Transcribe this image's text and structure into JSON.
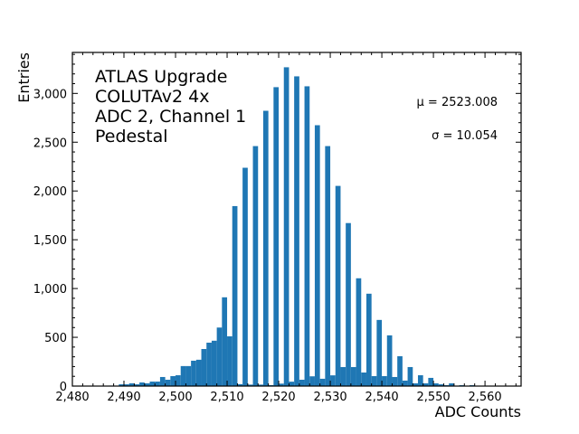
{
  "chart_data": {
    "type": "bar",
    "title": "",
    "xlabel": "ADC Counts",
    "ylabel": "Entries",
    "xlim": [
      2480,
      2567
    ],
    "ylim": [
      0,
      3420
    ],
    "bin_width": 1,
    "x_ticks": [
      2480,
      2490,
      2500,
      2510,
      2520,
      2530,
      2540,
      2550,
      2560
    ],
    "x_tick_labels": [
      "2,480",
      "2,490",
      "2,500",
      "2,510",
      "2,520",
      "2,530",
      "2,540",
      "2,550",
      "2,560"
    ],
    "y_ticks": [
      0,
      500,
      1000,
      1500,
      2000,
      2500,
      3000
    ],
    "y_tick_labels": [
      "0",
      "500",
      "1,000",
      "1,500",
      "2,000",
      "2,500",
      "3,000"
    ],
    "grid": false,
    "bar_color": "#1f77b4",
    "annotations": {
      "lines": [
        "ATLAS Upgrade",
        "COLUTAv2 4x",
        "ADC 2, Channel 1",
        "Pedestal"
      ],
      "mu": "μ = 2523.008",
      "sigma": "σ = 10.054"
    },
    "x": [
      2487,
      2488,
      2489,
      2490,
      2491,
      2492,
      2493,
      2494,
      2495,
      2496,
      2497,
      2498,
      2499,
      2500,
      2501,
      2502,
      2503,
      2504,
      2505,
      2506,
      2507,
      2508,
      2509,
      2510,
      2511,
      2512,
      2513,
      2514,
      2515,
      2516,
      2517,
      2518,
      2519,
      2520,
      2521,
      2522,
      2523,
      2524,
      2525,
      2526,
      2527,
      2528,
      2529,
      2530,
      2531,
      2532,
      2533,
      2534,
      2535,
      2536,
      2537,
      2538,
      2539,
      2540,
      2541,
      2542,
      2543,
      2544,
      2545,
      2546,
      2547,
      2548,
      2549,
      2550,
      2551,
      2552,
      2553,
      2554,
      2555,
      2556,
      2557
    ],
    "values": [
      5,
      0,
      18,
      18,
      28,
      18,
      37,
      28,
      46,
      46,
      93,
      65,
      102,
      111,
      205,
      205,
      260,
      270,
      380,
      445,
      465,
      600,
      910,
      510,
      1845,
      20,
      2238,
      15,
      2460,
      15,
      2822,
      10,
      3064,
      25,
      3268,
      45,
      3175,
      65,
      3073,
      100,
      2674,
      75,
      2460,
      110,
      2052,
      195,
      1671,
      195,
      1105,
      139,
      947,
      102,
      678,
      102,
      520,
      93,
      306,
      56,
      195,
      28,
      111,
      28,
      84,
      28,
      18,
      9,
      28,
      3,
      9,
      0,
      9
    ]
  }
}
